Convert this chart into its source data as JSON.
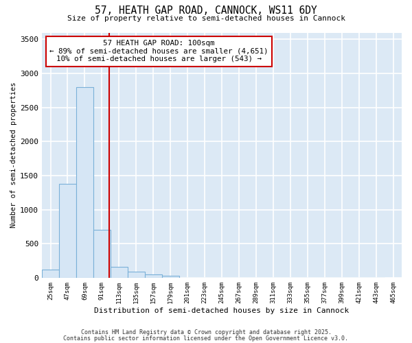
{
  "title_line1": "57, HEATH GAP ROAD, CANNOCK, WS11 6DY",
  "title_line2": "Size of property relative to semi-detached houses in Cannock",
  "xlabel": "Distribution of semi-detached houses by size in Cannock",
  "ylabel": "Number of semi-detached properties",
  "bar_color": "#d6e6f5",
  "bar_edge_color": "#7ab0d8",
  "bins_start": [
    25,
    47,
    69,
    91,
    113,
    135,
    157,
    179,
    201,
    223,
    245,
    267,
    289,
    311,
    333,
    355,
    377,
    399,
    421,
    443
  ],
  "values": [
    120,
    1380,
    2800,
    700,
    155,
    85,
    50,
    30,
    0,
    0,
    0,
    0,
    0,
    0,
    0,
    0,
    0,
    0,
    0,
    0
  ],
  "tick_labels": [
    "25sqm",
    "47sqm",
    "69sqm",
    "91sqm",
    "113sqm",
    "135sqm",
    "157sqm",
    "179sqm",
    "201sqm",
    "223sqm",
    "245sqm",
    "267sqm",
    "289sqm",
    "311sqm",
    "333sqm",
    "355sqm",
    "377sqm",
    "399sqm",
    "421sqm",
    "443sqm",
    "465sqm"
  ],
  "property_size": 100,
  "property_line_color": "#cc0000",
  "annotation_line1": "57 HEATH GAP ROAD: 100sqm",
  "annotation_line2": "← 89% of semi-detached houses are smaller (4,651)",
  "annotation_line3": "10% of semi-detached houses are larger (543) →",
  "annotation_box_color": "#ffffff",
  "annotation_box_edge": "#cc0000",
  "ylim": [
    0,
    3600
  ],
  "yticks": [
    0,
    500,
    1000,
    1500,
    2000,
    2500,
    3000,
    3500
  ],
  "background_color": "#dce9f5",
  "plot_bg_color": "#dce9f5",
  "fig_bg_color": "#ffffff",
  "grid_color": "#ffffff",
  "footer_line1": "Contains HM Land Registry data © Crown copyright and database right 2025.",
  "footer_line2": "Contains public sector information licensed under the Open Government Licence v3.0."
}
